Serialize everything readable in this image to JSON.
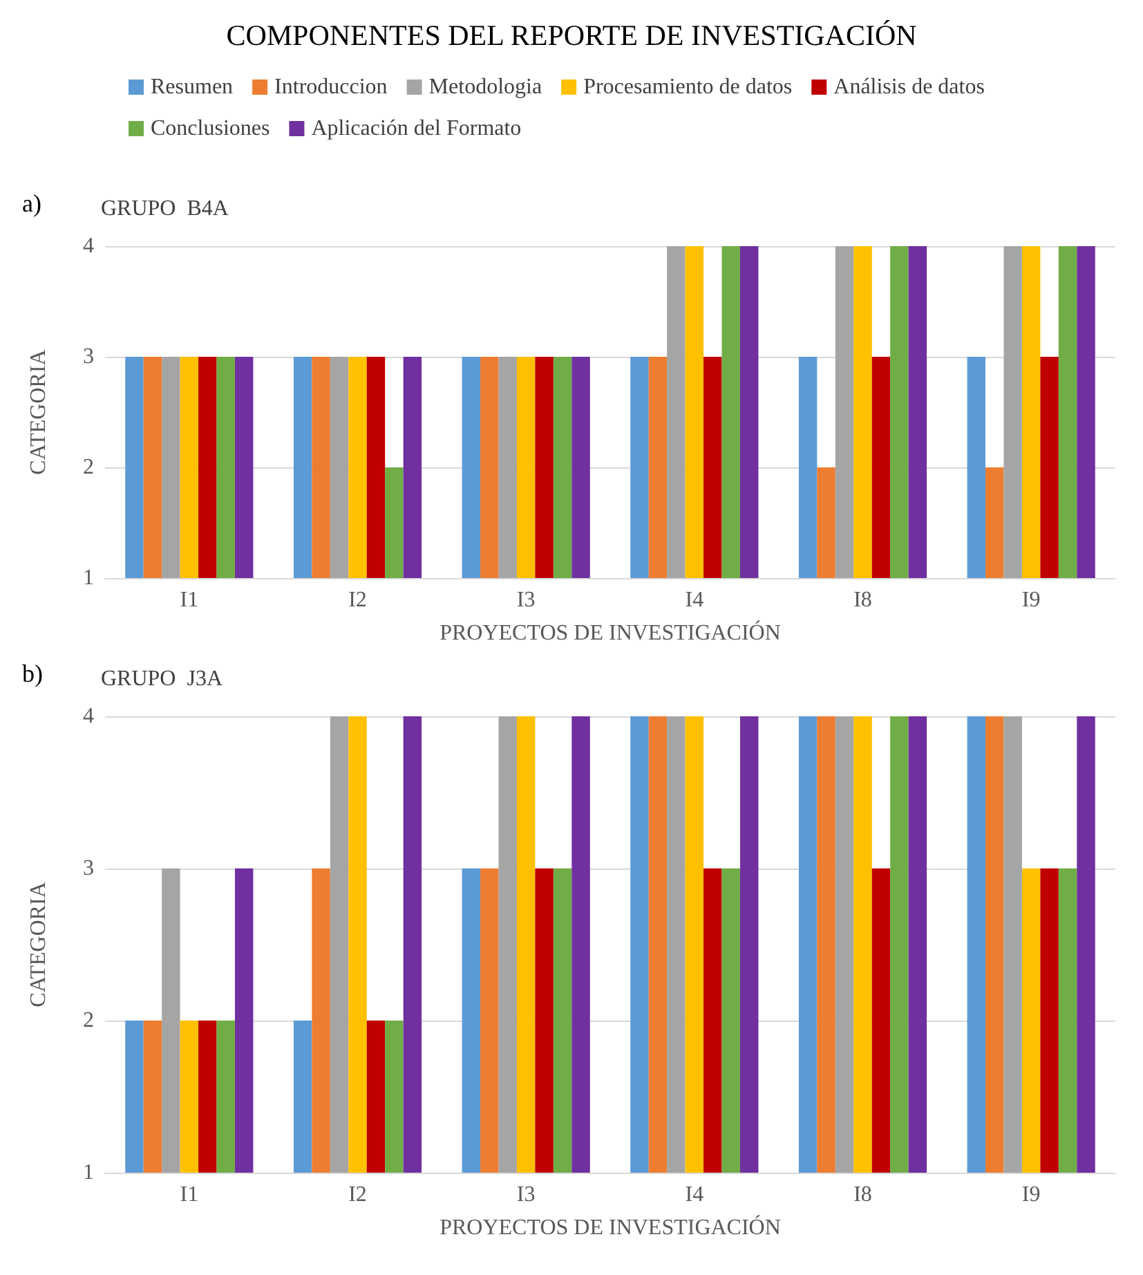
{
  "chart_data": [
    {
      "type": "bar",
      "title": "COMPONENTES DEL REPORTE DE INVESTIGACIÓN",
      "subtitle": "GRUPO  B4A",
      "annotations": [
        "a)"
      ],
      "xlabel": "PROYECTOS DE INVESTIGACIÓN",
      "ylabel": "CATEGORIA",
      "categories": [
        "I1",
        "I2",
        "I3",
        "I4",
        "I8",
        "I9"
      ],
      "ylim": [
        1,
        4
      ],
      "yticks": [
        1,
        2,
        3,
        4
      ],
      "grid": "y",
      "legend": "top",
      "series": [
        {
          "name": "Resumen",
          "color": "#5b9bd5",
          "values": [
            3,
            3,
            3,
            3,
            3,
            3
          ]
        },
        {
          "name": "Introduccion",
          "color": "#ed7d31",
          "values": [
            3,
            3,
            3,
            3,
            2,
            2
          ]
        },
        {
          "name": "Metodologia",
          "color": "#a5a5a5",
          "values": [
            3,
            3,
            3,
            4,
            4,
            4
          ]
        },
        {
          "name": "Procesamiento de datos",
          "color": "#ffc000",
          "values": [
            3,
            3,
            3,
            4,
            4,
            4
          ]
        },
        {
          "name": "Análisis de datos",
          "color": "#c00000",
          "values": [
            3,
            3,
            3,
            3,
            3,
            3
          ]
        },
        {
          "name": "Conclusiones",
          "color": "#70ad47",
          "values": [
            3,
            2,
            3,
            4,
            4,
            4
          ]
        },
        {
          "name": "Aplicación del Formato",
          "color": "#7030a0",
          "values": [
            3,
            3,
            3,
            4,
            4,
            4
          ]
        }
      ]
    },
    {
      "type": "bar",
      "subtitle": "GRUPO  J3A",
      "annotations": [
        "b)"
      ],
      "xlabel": "PROYECTOS DE INVESTIGACIÓN",
      "ylabel": "CATEGORIA",
      "categories": [
        "I1",
        "I2",
        "I3",
        "I4",
        "I8",
        "I9"
      ],
      "ylim": [
        1,
        4
      ],
      "yticks": [
        1,
        2,
        3,
        4
      ],
      "grid": "y",
      "series": [
        {
          "color": "#5b9bd5",
          "values": [
            2,
            2,
            3,
            4,
            4,
            4
          ]
        },
        {
          "color": "#ed7d31",
          "values": [
            2,
            3,
            3,
            4,
            4,
            4
          ]
        },
        {
          "color": "#a5a5a5",
          "values": [
            3,
            4,
            4,
            4,
            4,
            4
          ]
        },
        {
          "color": "#ffc000",
          "values": [
            2,
            4,
            4,
            4,
            4,
            3
          ]
        },
        {
          "color": "#c00000",
          "values": [
            2,
            2,
            3,
            3,
            3,
            3
          ]
        },
        {
          "color": "#70ad47",
          "values": [
            2,
            2,
            3,
            3,
            4,
            3
          ]
        },
        {
          "color": "#7030a0",
          "values": [
            3,
            4,
            4,
            4,
            4,
            4
          ]
        }
      ]
    }
  ]
}
